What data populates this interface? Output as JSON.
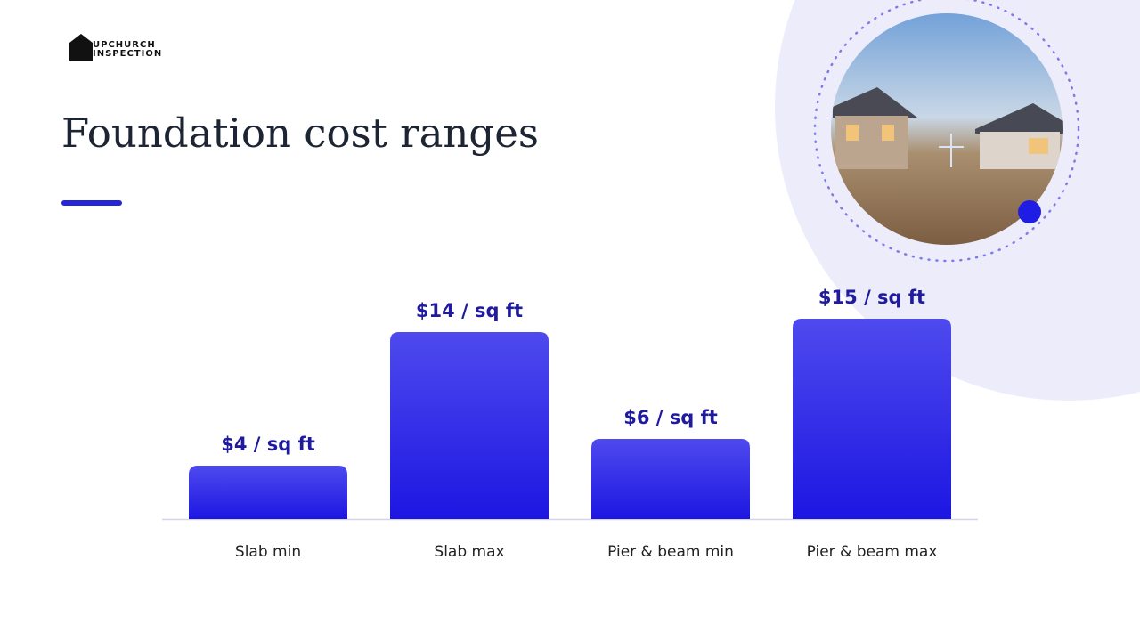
{
  "logo": {
    "line1": "UPCHURCH",
    "line2": "INSPECTION"
  },
  "chart_data": {
    "type": "bar",
    "title": "Foundation cost ranges",
    "categories": [
      "Slab min",
      "Slab max",
      "Pier & beam min",
      "Pier & beam max"
    ],
    "values": [
      4,
      14,
      6,
      15
    ],
    "value_labels": [
      "$4 / sq ft",
      "$14 / sq ft",
      "$6 / sq ft",
      "$15 / sq ft"
    ],
    "color": "#2a22e4"
  }
}
